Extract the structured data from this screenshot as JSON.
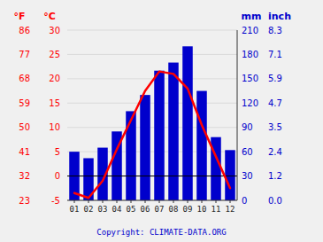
{
  "chart_data": {
    "type": "bar",
    "categories": [
      "01",
      "02",
      "03",
      "04",
      "05",
      "06",
      "07",
      "08",
      "09",
      "10",
      "11",
      "12"
    ],
    "series": [
      {
        "type": "bar",
        "color": "#0000cc",
        "values": [
          60,
          52,
          65,
          85,
          110,
          130,
          160,
          170,
          190,
          135,
          78,
          62
        ]
      },
      {
        "type": "line",
        "axis": "y2",
        "color": "#ff0000",
        "values": [
          -3.5,
          -4.5,
          -1.0,
          5.5,
          11.5,
          17.5,
          21.5,
          21.0,
          18.0,
          10.5,
          4.0,
          -2.5
        ]
      }
    ],
    "ylabel": "mm",
    "ylim": [
      0,
      210
    ],
    "yticks": [
      0,
      30,
      60,
      90,
      120,
      150,
      180,
      210
    ],
    "y4label": "inch",
    "y4ticks": [
      {
        "value": 0,
        "label": "0.0"
      },
      {
        "value": 30,
        "label": "1.2"
      },
      {
        "value": 60,
        "label": "2.4"
      },
      {
        "value": 90,
        "label": "3.5"
      },
      {
        "value": 120,
        "label": "4.7"
      },
      {
        "value": 150,
        "label": "5.9"
      },
      {
        "value": 180,
        "label": "7.1"
      },
      {
        "value": 210,
        "label": "8.3"
      }
    ],
    "y2label": "°C",
    "y2lim": [
      -5,
      30
    ],
    "y2ticks": [
      -5,
      0,
      5,
      10,
      15,
      20,
      25,
      30
    ],
    "y3label": "°F",
    "y3lim": [
      23,
      86
    ],
    "y3ticks": [
      23,
      32,
      41,
      50,
      59,
      68,
      77,
      86
    ],
    "grid": true,
    "annotation": "Copyright: CLIMATE-DATA.ORG"
  }
}
